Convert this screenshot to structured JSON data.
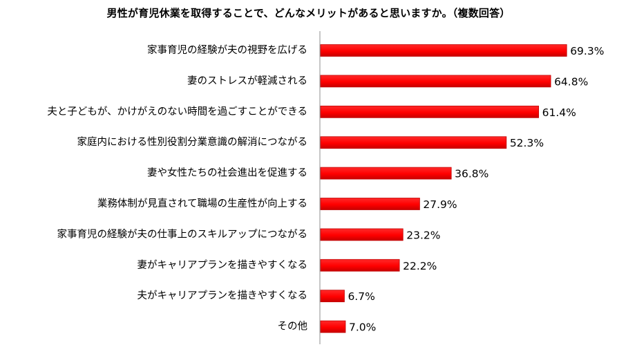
{
  "chart_data": {
    "type": "bar",
    "orientation": "horizontal",
    "title": "男性が育児休業を取得することで、どんなメリットがあると思いますか。（複数回答）",
    "categories": [
      "家事育児の経験が夫の視野を広げる",
      "妻のストレスが軽減される",
      "夫と子どもが、かけがえのない時間を過ごすことができる",
      "家庭内における性別役割分業意識の解消につながる",
      "妻や女性たちの社会進出を促進する",
      "業務体制が見直されて職場の生産性が向上する",
      "家事育児の経験が夫の仕事上のスキルアップにつながる",
      "妻がキャリアプランを描きやすくなる",
      "夫がキャリアプランを描きやすくなる",
      "その他"
    ],
    "values": [
      69.3,
      64.8,
      61.4,
      52.3,
      36.8,
      27.9,
      23.2,
      22.2,
      6.7,
      7.0
    ],
    "value_labels": [
      "69.3%",
      "64.8%",
      "61.4%",
      "52.3%",
      "36.8%",
      "27.9%",
      "23.2%",
      "22.2%",
      "6.7%",
      "7.0%"
    ],
    "unit": "%",
    "xlim": [
      0,
      80
    ],
    "grid": false,
    "legend": "none",
    "bar_color": "#ff0000",
    "bar_shade_color": "#c00000"
  }
}
